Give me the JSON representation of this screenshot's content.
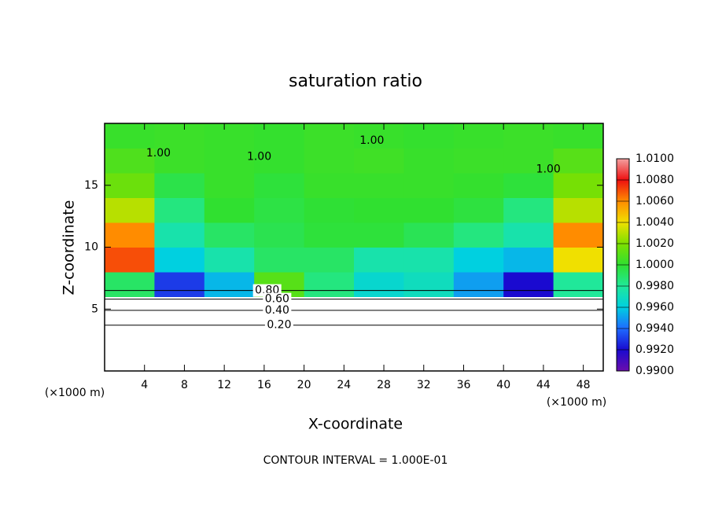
{
  "chart_data": {
    "type": "contour",
    "title": "saturation ratio",
    "x_label": "X-coordinate",
    "y_label": "Z-coordinate",
    "x_unit": "(×1000 m)",
    "x_unit_right": "(×1000 m)",
    "footer": "CONTOUR INTERVAL = 1.000E-01",
    "xlim": [
      0,
      50
    ],
    "ylim": [
      0,
      20
    ],
    "xticks": [
      4,
      8,
      12,
      16,
      20,
      24,
      28,
      32,
      36,
      40,
      44,
      48
    ],
    "yticks": [
      5,
      10,
      15
    ],
    "x": [
      2.5,
      7.5,
      12.5,
      17.5,
      22.5,
      27.5,
      32.5,
      37.5,
      42.5,
      47.5
    ],
    "y": [
      1,
      3,
      5,
      7,
      9,
      11,
      13,
      15,
      17,
      19
    ],
    "z": [
      [
        0.1,
        0.1,
        0.1,
        0.1,
        0.1,
        0.1,
        0.1,
        0.1,
        0.1,
        0.1
      ],
      [
        0.2,
        0.2,
        0.2,
        0.2,
        0.2,
        0.2,
        0.2,
        0.2,
        0.2,
        0.2
      ],
      [
        0.5,
        0.5,
        0.5,
        0.5,
        0.5,
        0.5,
        0.5,
        0.5,
        0.5,
        0.5
      ],
      [
        0.999,
        0.993,
        0.9955,
        1.001,
        0.9985,
        0.9965,
        0.997,
        0.995,
        0.992,
        0.998
      ],
      [
        1.007,
        0.996,
        0.9975,
        0.999,
        0.999,
        0.9975,
        0.9975,
        0.996,
        0.9955,
        1.004
      ],
      [
        1.006,
        0.9975,
        0.999,
        0.9994,
        0.9998,
        0.9998,
        0.9993,
        0.9985,
        0.9975,
        1.006
      ],
      [
        1.003,
        0.9985,
        1.0,
        0.9996,
        0.9999,
        1.0,
        1.0,
        0.9997,
        0.9985,
        1.003
      ],
      [
        1.0015,
        0.9995,
        1.0002,
        0.9998,
        1.0002,
        1.0002,
        1.0002,
        1.0001,
        0.9998,
        1.0018
      ],
      [
        1.0008,
        1.0003,
        1.0002,
        1.0001,
        1.0003,
        1.0004,
        1.0002,
        1.0003,
        1.0003,
        1.001
      ],
      [
        1.0002,
        1.0003,
        1.0002,
        1.0001,
        1.0003,
        1.0002,
        1.0001,
        1.0002,
        1.0003,
        1.0002
      ]
    ],
    "clim": [
      0.99,
      1.01
    ],
    "cticks": [
      {
        "value": 0.99,
        "label": "0.9900"
      },
      {
        "value": 0.992,
        "label": "0.9920"
      },
      {
        "value": 0.994,
        "label": "0.9940"
      },
      {
        "value": 0.996,
        "label": "0.9960"
      },
      {
        "value": 0.998,
        "label": "0.9980"
      },
      {
        "value": 1.0,
        "label": "1.0000"
      },
      {
        "value": 1.002,
        "label": "1.0020"
      },
      {
        "value": 1.004,
        "label": "1.0040"
      },
      {
        "value": 1.006,
        "label": "1.0060"
      },
      {
        "value": 1.008,
        "label": "1.0080"
      },
      {
        "value": 1.01,
        "label": "1.0100"
      }
    ],
    "colormap": [
      "#6a0dad",
      "#1a0ad0",
      "#1e6bff",
      "#00d0e0",
      "#20e89a",
      "#30e030",
      "#7ee000",
      "#f0e000",
      "#ff8c00",
      "#ee1010",
      "#f4a0a0"
    ],
    "contour_labels": [
      {
        "text": "1.00",
        "x": 5.4,
        "y": 17.6
      },
      {
        "text": "1.00",
        "x": 15.5,
        "y": 17.3
      },
      {
        "text": "1.00",
        "x": 26.8,
        "y": 18.6
      },
      {
        "text": "1.00",
        "x": 44.5,
        "y": 16.3
      },
      {
        "text": "0.80",
        "x": 16.3,
        "y": 6.5
      },
      {
        "text": "0.60",
        "x": 17.3,
        "y": 5.8
      },
      {
        "text": "0.40",
        "x": 17.3,
        "y": 4.9
      },
      {
        "text": "0.20",
        "x": 17.5,
        "y": 3.7
      }
    ]
  }
}
